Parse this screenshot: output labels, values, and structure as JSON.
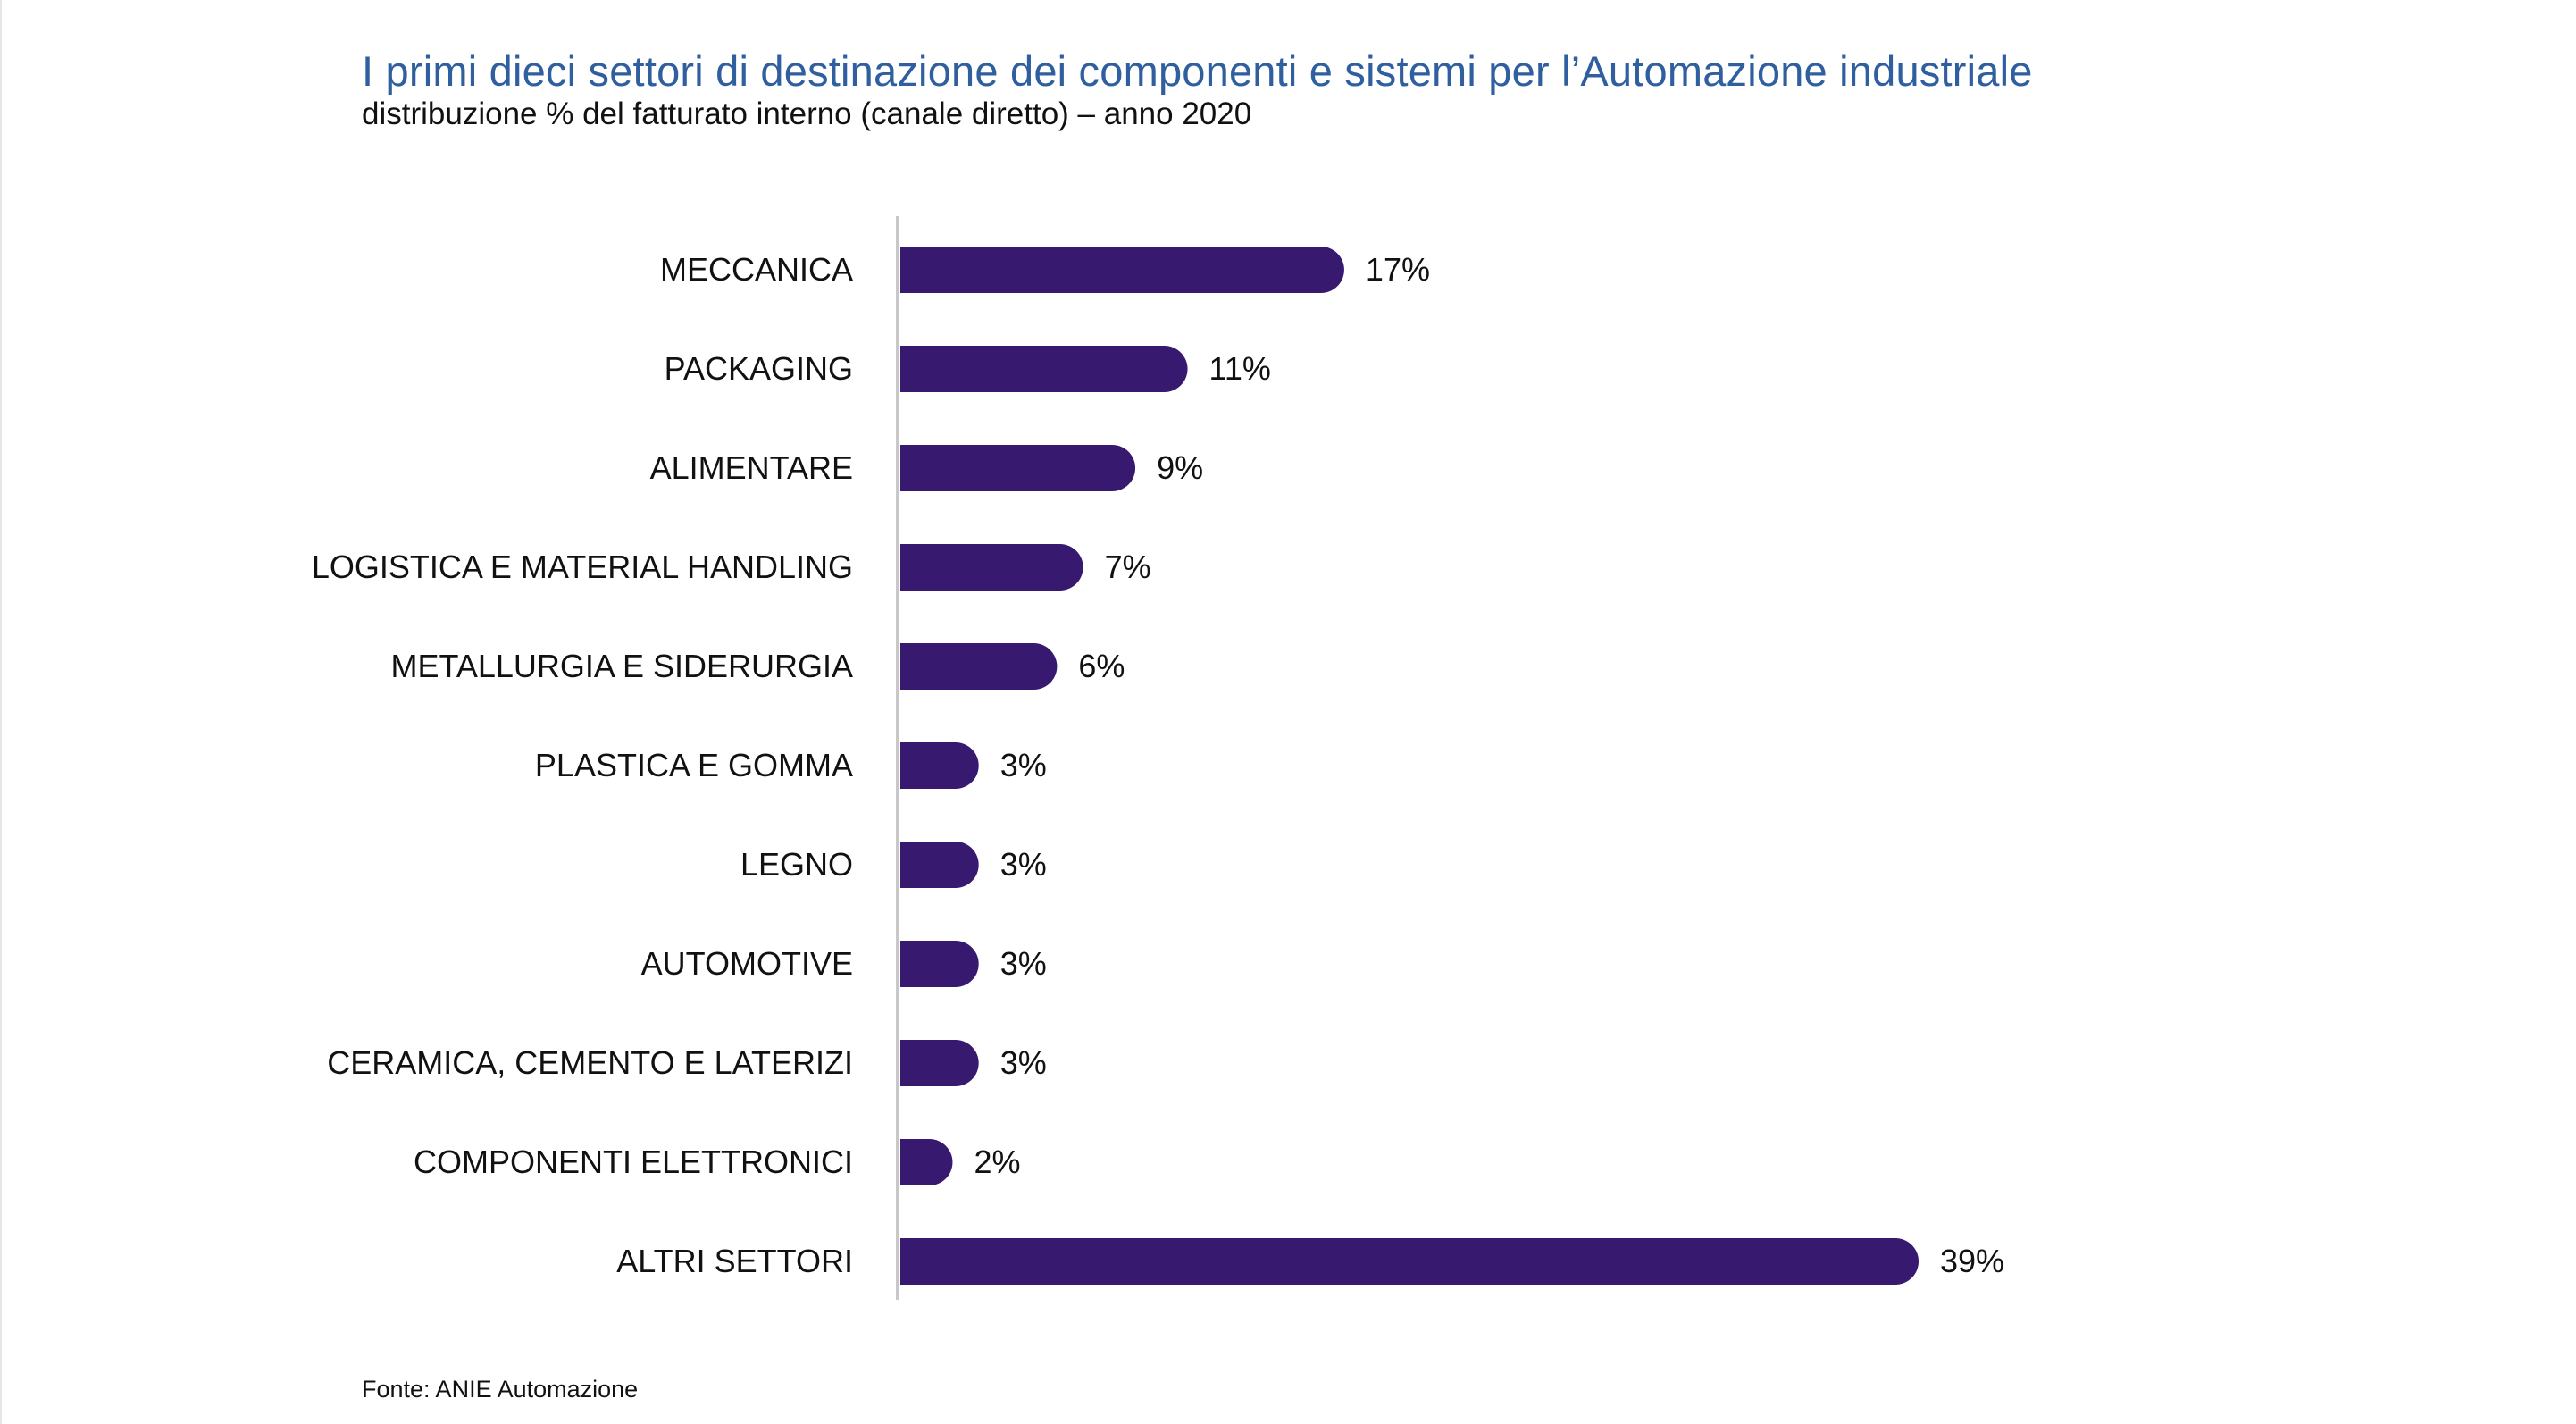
{
  "title": "I primi dieci settori di destinazione dei componenti e sistemi per l’Automazione industriale",
  "subtitle": "distribuzione % del fatturato interno (canale diretto) – anno 2020",
  "source": "Fonte: ANIE Automazione",
  "colors": {
    "bar": "#371970",
    "axis": "#c8c8c8",
    "title": "#2f5f9e",
    "text": "#111111"
  },
  "chart_data": {
    "type": "bar",
    "orientation": "horizontal",
    "title": "I primi dieci settori di destinazione dei componenti e sistemi per l’Automazione industriale",
    "subtitle": "distribuzione % del fatturato interno (canale diretto) – anno 2020",
    "xlabel": "",
    "ylabel": "",
    "value_suffix": "%",
    "xlim": [
      0,
      39
    ],
    "grid": false,
    "legend": "none",
    "categories": [
      "MECCANICA",
      "PACKAGING",
      "ALIMENTARE",
      "LOGISTICA E MATERIAL HANDLING",
      "METALLURGIA E SIDERURGIA",
      "PLASTICA E GOMMA",
      "LEGNO",
      "AUTOMOTIVE",
      "CERAMICA, CEMENTO E LATERIZI",
      "COMPONENTI ELETTRONICI",
      "ALTRI SETTORI"
    ],
    "values": [
      17,
      11,
      9,
      7,
      6,
      3,
      3,
      3,
      3,
      2,
      39
    ],
    "data_labels": [
      "17%",
      "11%",
      "9%",
      "7%",
      "6%",
      "3%",
      "3%",
      "3%",
      "3%",
      "2%",
      "39%"
    ]
  }
}
